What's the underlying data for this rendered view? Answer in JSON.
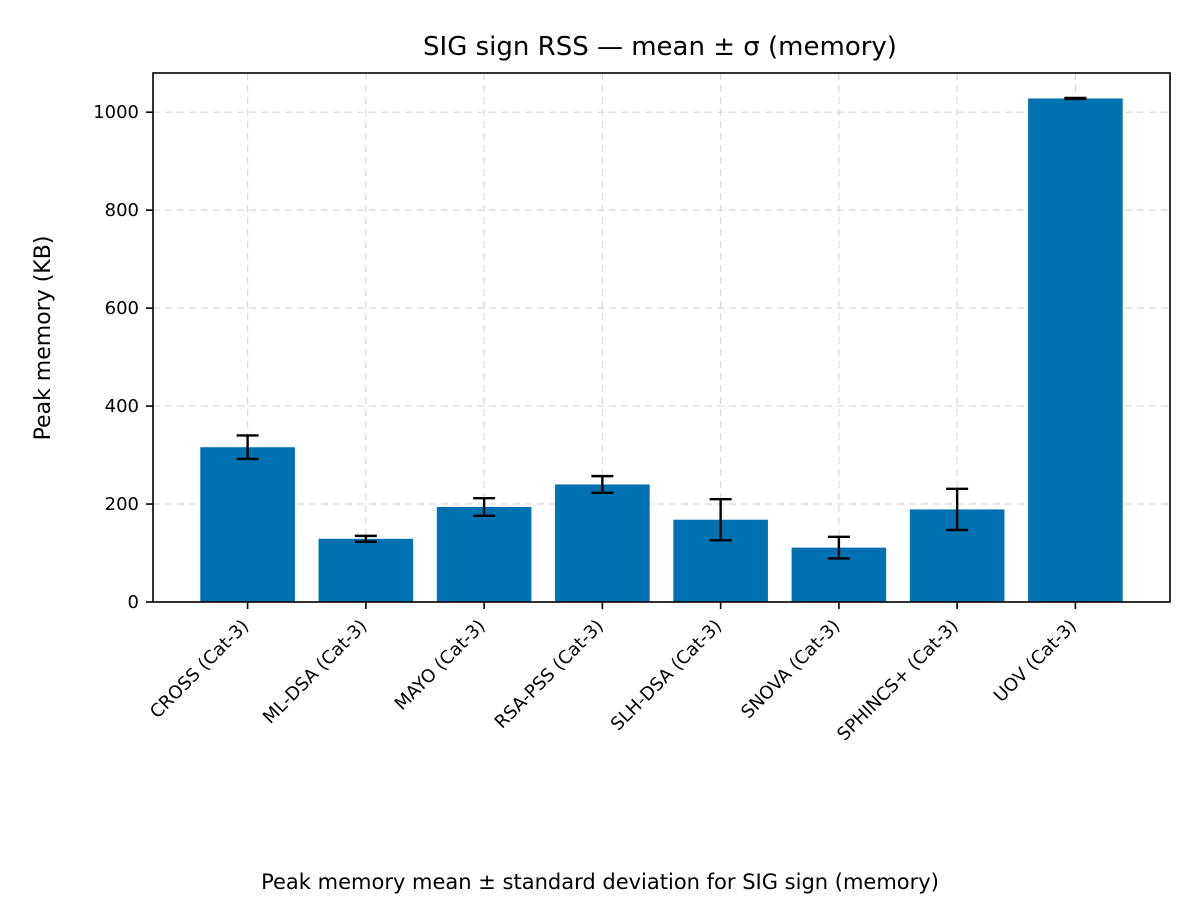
{
  "chart_data": {
    "type": "bar",
    "title": "SIG sign RSS — mean ± σ (memory)",
    "xlabel": "",
    "ylabel": "Peak memory (KB)",
    "categories": [
      "CROSS (Cat-3)",
      "ML-DSA (Cat-3)",
      "MAYO (Cat-3)",
      "RSA-PSS (Cat-3)",
      "SLH-DSA (Cat-3)",
      "SNOVA (Cat-3)",
      "SPHINCS+ (Cat-3)",
      "UOV (Cat-3)"
    ],
    "values": [
      316,
      129,
      194,
      240,
      168,
      111,
      189,
      1028
    ],
    "errors": [
      24,
      6,
      18,
      17,
      42,
      22,
      42,
      1
    ],
    "ylim": [
      0,
      1080
    ],
    "yticks": [
      0,
      200,
      400,
      600,
      800,
      1000
    ],
    "grid": true,
    "bar_color": "#0072b2",
    "caption": "Peak memory mean ± standard deviation for SIG sign (memory)"
  }
}
